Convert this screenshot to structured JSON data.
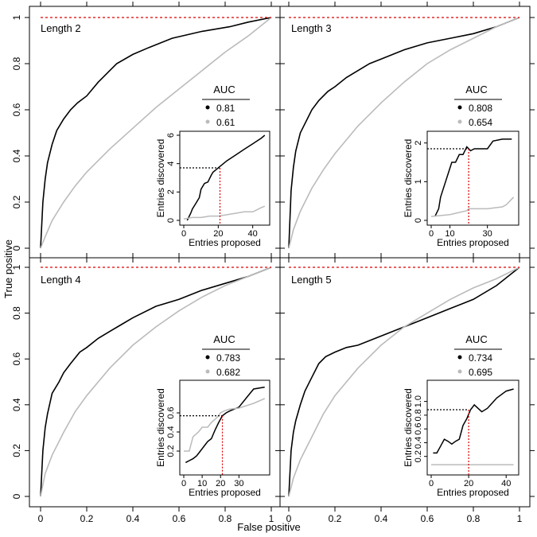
{
  "figure": {
    "xlabel": "False positive",
    "ylabel": "True positive",
    "main_ticks": [
      "0",
      "0.2",
      "0.4",
      "0.6",
      "0.8",
      "1"
    ],
    "colors": {
      "model": "#000000",
      "baseline": "#bbbbbb",
      "reference": "#dd0000"
    }
  },
  "chart_data": [
    {
      "type": "line",
      "title": "Length 2",
      "xlim": [
        0,
        1
      ],
      "ylim": [
        0,
        1
      ],
      "auc": {
        "header": "AUC",
        "model": "0.81",
        "baseline": "0.61"
      },
      "series": [
        {
          "role": "model",
          "x": [
            0,
            0.01,
            0.02,
            0.03,
            0.05,
            0.07,
            0.1,
            0.13,
            0.16,
            0.2,
            0.25,
            0.3,
            0.33,
            0.4,
            0.47,
            0.57,
            0.7,
            0.82,
            0.9,
            1
          ],
          "y": [
            0,
            0.2,
            0.3,
            0.37,
            0.45,
            0.51,
            0.56,
            0.6,
            0.63,
            0.66,
            0.72,
            0.77,
            0.8,
            0.84,
            0.87,
            0.91,
            0.94,
            0.96,
            0.98,
            1
          ]
        },
        {
          "role": "baseline",
          "x": [
            0,
            0.02,
            0.05,
            0.1,
            0.15,
            0.2,
            0.3,
            0.4,
            0.5,
            0.6,
            0.7,
            0.8,
            0.9,
            1
          ],
          "y": [
            0,
            0.05,
            0.12,
            0.2,
            0.27,
            0.33,
            0.43,
            0.52,
            0.61,
            0.69,
            0.77,
            0.85,
            0.92,
            1
          ]
        },
        {
          "role": "reference",
          "x": [
            0,
            1
          ],
          "y": [
            1,
            1
          ]
        }
      ],
      "inset": {
        "type": "line",
        "xlabel": "Entries proposed",
        "ylabel": "Entries discovered",
        "xlim": [
          0,
          48
        ],
        "ylim": [
          0,
          6
        ],
        "xticks": [
          0,
          20,
          40
        ],
        "yticks": [
          0,
          2,
          4,
          6
        ],
        "marker": {
          "x": 21,
          "y": 3.7
        },
        "series": [
          {
            "role": "model",
            "x": [
              2,
              4,
              5,
              7,
              9,
              10,
              12,
              14,
              16,
              17,
              19,
              21,
              25,
              30,
              35,
              40,
              45,
              47
            ],
            "y": [
              0,
              0.5,
              0.8,
              1.2,
              1.6,
              2.2,
              2.6,
              2.7,
              3.2,
              3.4,
              3.6,
              3.8,
              4.2,
              4.6,
              5.0,
              5.4,
              5.8,
              6
            ]
          },
          {
            "role": "baseline",
            "x": [
              0,
              5,
              10,
              15,
              20,
              25,
              30,
              35,
              40,
              45,
              47
            ],
            "y": [
              0.1,
              0.2,
              0.2,
              0.3,
              0.3,
              0.4,
              0.5,
              0.6,
              0.6,
              0.9,
              1.0
            ]
          }
        ]
      }
    },
    {
      "type": "line",
      "title": "Length 3",
      "xlim": [
        0,
        1
      ],
      "ylim": [
        0,
        1
      ],
      "auc": {
        "header": "AUC",
        "model": "0.808",
        "baseline": "0.654"
      },
      "series": [
        {
          "role": "model",
          "x": [
            0,
            0.01,
            0.02,
            0.03,
            0.05,
            0.08,
            0.1,
            0.13,
            0.17,
            0.2,
            0.25,
            0.3,
            0.35,
            0.4,
            0.5,
            0.6,
            0.7,
            0.8,
            0.9,
            1
          ],
          "y": [
            0,
            0.25,
            0.35,
            0.42,
            0.5,
            0.56,
            0.6,
            0.64,
            0.68,
            0.7,
            0.74,
            0.77,
            0.8,
            0.82,
            0.86,
            0.89,
            0.91,
            0.93,
            0.96,
            1
          ]
        },
        {
          "role": "baseline",
          "x": [
            0,
            0.02,
            0.05,
            0.1,
            0.15,
            0.2,
            0.3,
            0.4,
            0.5,
            0.6,
            0.7,
            0.8,
            0.9,
            1
          ],
          "y": [
            0,
            0.08,
            0.16,
            0.26,
            0.34,
            0.41,
            0.53,
            0.63,
            0.72,
            0.8,
            0.86,
            0.91,
            0.96,
            1
          ]
        },
        {
          "role": "reference",
          "x": [
            0,
            1
          ],
          "y": [
            1,
            1
          ]
        }
      ],
      "inset": {
        "type": "line",
        "xlabel": "Entries proposed",
        "ylabel": "Entries discovered",
        "xlim": [
          0,
          45
        ],
        "ylim": [
          0,
          2.2
        ],
        "xticks": [
          0,
          10,
          30
        ],
        "yticks": [
          0.0,
          1.0,
          2.0
        ],
        "marker": {
          "x": 20,
          "y": 1.85
        },
        "series": [
          {
            "role": "model",
            "x": [
              2,
              4,
              5,
              7,
              9,
              11,
              13,
              15,
              17,
              19,
              21,
              23,
              25,
              30,
              33,
              38,
              43
            ],
            "y": [
              0.1,
              0.3,
              0.6,
              0.9,
              1.2,
              1.5,
              1.5,
              1.7,
              1.7,
              1.9,
              1.8,
              1.85,
              1.85,
              1.85,
              2.05,
              2.1,
              2.1
            ]
          },
          {
            "role": "baseline",
            "x": [
              0,
              10,
              19,
              20,
              25,
              30,
              38,
              40,
              44
            ],
            "y": [
              0.1,
              0.15,
              0.25,
              0.3,
              0.3,
              0.3,
              0.35,
              0.4,
              0.6
            ]
          }
        ]
      }
    },
    {
      "type": "line",
      "title": "Length 4",
      "xlim": [
        0,
        1
      ],
      "ylim": [
        0,
        1
      ],
      "auc": {
        "header": "AUC",
        "model": "0.783",
        "baseline": "0.682"
      },
      "series": [
        {
          "role": "model",
          "x": [
            0,
            0.01,
            0.02,
            0.03,
            0.05,
            0.08,
            0.1,
            0.13,
            0.17,
            0.2,
            0.25,
            0.3,
            0.35,
            0.4,
            0.5,
            0.6,
            0.7,
            0.8,
            0.9,
            1
          ],
          "y": [
            0,
            0.2,
            0.3,
            0.36,
            0.45,
            0.5,
            0.54,
            0.58,
            0.63,
            0.65,
            0.69,
            0.72,
            0.75,
            0.78,
            0.83,
            0.86,
            0.9,
            0.93,
            0.96,
            1
          ]
        },
        {
          "role": "baseline",
          "x": [
            0,
            0.02,
            0.05,
            0.1,
            0.15,
            0.2,
            0.3,
            0.4,
            0.5,
            0.6,
            0.7,
            0.8,
            0.9,
            1
          ],
          "y": [
            0,
            0.1,
            0.18,
            0.28,
            0.37,
            0.44,
            0.56,
            0.66,
            0.74,
            0.81,
            0.87,
            0.92,
            0.96,
            1
          ]
        },
        {
          "role": "reference",
          "x": [
            0,
            1
          ],
          "y": [
            1,
            1
          ]
        }
      ],
      "inset": {
        "type": "line",
        "xlabel": "Entries proposed",
        "ylabel": "Entries discovered",
        "xlim": [
          0,
          45
        ],
        "ylim": [
          0,
          0.9
        ],
        "xticks": [
          0,
          10,
          20,
          30
        ],
        "yticks": [
          0.2,
          0.4,
          0.6
        ],
        "marker": {
          "x": 21,
          "y": 0.57
        },
        "series": [
          {
            "role": "model",
            "x": [
              1,
              3,
              5,
              7,
              9,
              11,
              13,
              15,
              17,
              19,
              21,
              23,
              25,
              30,
              35,
              38,
              44
            ],
            "y": [
              0.08,
              0.1,
              0.12,
              0.15,
              0.2,
              0.25,
              0.3,
              0.33,
              0.42,
              0.5,
              0.57,
              0.6,
              0.62,
              0.66,
              0.78,
              0.85,
              0.87
            ]
          },
          {
            "role": "baseline",
            "x": [
              0,
              3,
              5,
              8,
              10,
              13,
              15,
              18,
              20,
              22,
              25,
              30,
              38,
              44
            ],
            "y": [
              0.2,
              0.2,
              0.35,
              0.4,
              0.45,
              0.45,
              0.5,
              0.55,
              0.6,
              0.62,
              0.64,
              0.65,
              0.7,
              0.75
            ]
          }
        ]
      }
    },
    {
      "type": "line",
      "title": "Length 5",
      "xlim": [
        0,
        1
      ],
      "ylim": [
        0,
        1
      ],
      "auc": {
        "header": "AUC",
        "model": "0.734",
        "baseline": "0.695"
      },
      "series": [
        {
          "role": "model",
          "x": [
            0,
            0.01,
            0.02,
            0.03,
            0.05,
            0.07,
            0.1,
            0.13,
            0.16,
            0.2,
            0.25,
            0.3,
            0.4,
            0.5,
            0.6,
            0.7,
            0.8,
            0.9,
            1
          ],
          "y": [
            0,
            0.2,
            0.28,
            0.33,
            0.4,
            0.46,
            0.52,
            0.58,
            0.61,
            0.63,
            0.65,
            0.66,
            0.7,
            0.74,
            0.78,
            0.82,
            0.86,
            0.92,
            1
          ]
        },
        {
          "role": "baseline",
          "x": [
            0,
            0.02,
            0.05,
            0.1,
            0.15,
            0.2,
            0.3,
            0.4,
            0.5,
            0.6,
            0.7,
            0.8,
            0.9,
            1
          ],
          "y": [
            0,
            0.08,
            0.16,
            0.26,
            0.36,
            0.44,
            0.56,
            0.66,
            0.74,
            0.8,
            0.86,
            0.91,
            0.95,
            1
          ]
        },
        {
          "role": "reference",
          "x": [
            0,
            1
          ],
          "y": [
            1,
            1
          ]
        }
      ],
      "inset": {
        "type": "line",
        "xlabel": "Entries proposed",
        "ylabel": "Entries discovered",
        "xlim": [
          0,
          45
        ],
        "ylim": [
          0,
          1.25
        ],
        "xticks": [
          0,
          20,
          40
        ],
        "yticks": [
          0.2,
          0.4,
          0.6,
          0.8,
          1.0
        ],
        "marker": {
          "x": 20,
          "y": 0.88
        },
        "series": [
          {
            "role": "model",
            "x": [
              1,
              3,
              5,
              7,
              9,
              11,
              13,
              15,
              17,
              19,
              21,
              23,
              27,
              30,
              35,
              40,
              44
            ],
            "y": [
              0.25,
              0.25,
              0.35,
              0.45,
              0.42,
              0.38,
              0.42,
              0.45,
              0.65,
              0.75,
              0.88,
              0.95,
              0.85,
              0.9,
              1.05,
              1.15,
              1.18
            ]
          },
          {
            "role": "baseline",
            "x": [
              0,
              10,
              20,
              30,
              44
            ],
            "y": [
              0.08,
              0.08,
              0.08,
              0.08,
              0.08
            ]
          }
        ]
      }
    }
  ]
}
